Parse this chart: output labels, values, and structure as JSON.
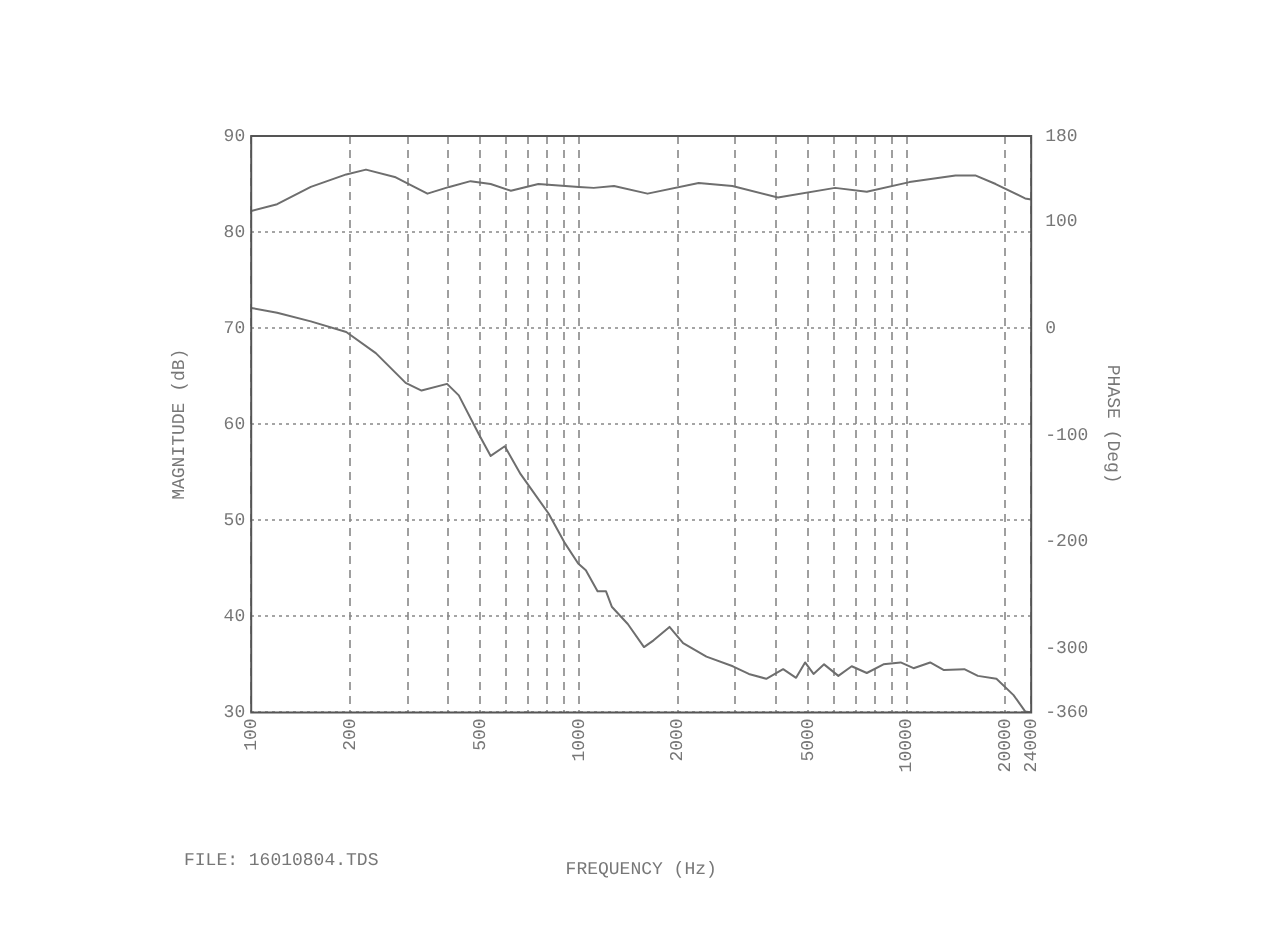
{
  "chart_data": {
    "type": "line",
    "xlabel": "FREQUENCY (Hz)",
    "ylabel": "MAGNITUDE (dB)",
    "y2label": "PHASE (Deg)",
    "annotations": [
      "FILE: 16010804.TDS"
    ],
    "log": "x",
    "grid": true,
    "legend": false,
    "marker": "none",
    "line_style": "solid",
    "xlim": [
      100,
      24000
    ],
    "xticks": [
      100,
      200,
      {
        "value": 300,
        "label": null
      },
      {
        "value": 400,
        "label": null
      },
      500,
      {
        "value": 600,
        "label": null
      },
      {
        "value": 700,
        "label": null
      },
      {
        "value": 800,
        "label": null
      },
      {
        "value": 900,
        "label": null
      },
      1000,
      2000,
      {
        "value": 3000,
        "label": null
      },
      {
        "value": 4000,
        "label": null
      },
      5000,
      {
        "value": 6000,
        "label": null
      },
      {
        "value": 7000,
        "label": null
      },
      {
        "value": 8000,
        "label": null
      },
      {
        "value": 9000,
        "label": null
      },
      10000,
      20000,
      24000
    ],
    "ylim": [
      30,
      90
    ],
    "yticks": [
      30,
      40,
      50,
      60,
      70,
      80,
      90
    ],
    "y2lim": [
      -360,
      180
    ],
    "y2ticks": [
      -360,
      -300,
      -200,
      -100,
      0,
      100,
      180
    ],
    "series": [
      {
        "color": "#6e6e6e",
        "x": [
          100,
          120,
          152,
          195,
          224,
          276,
          345,
          402,
          467,
          538,
          620,
          752,
          1000,
          1110,
          1280,
          1620,
          2320,
          2940,
          4050,
          6050,
          7560,
          10200,
          14100,
          16200,
          18700,
          23000,
          24000
        ],
        "values": [
          82.2,
          82.9,
          84.7,
          86.0,
          86.5,
          85.7,
          84.0,
          84.7,
          85.3,
          85.0,
          84.3,
          85.0,
          84.7,
          84.6,
          84.8,
          84.0,
          85.1,
          84.8,
          83.6,
          84.6,
          84.2,
          85.2,
          85.9,
          85.9,
          85.0,
          83.5,
          83.4
        ]
      },
      {
        "color": "#6e6e6e",
        "x": [
          100,
          120,
          152,
          195,
          240,
          296,
          331,
          396,
          430,
          496,
          538,
          594,
          664,
          808,
          903,
          995,
          1050,
          1140,
          1210,
          1260,
          1410,
          1580,
          1690,
          1890,
          2080,
          2450,
          2950,
          3300,
          3730,
          4200,
          4600,
          4900,
          5200,
          5600,
          6190,
          6800,
          7560,
          8500,
          9590,
          10500,
          11800,
          13000,
          15000,
          16500,
          18800,
          21200,
          23000,
          24000
        ],
        "values": [
          72.1,
          71.6,
          70.7,
          69.6,
          67.4,
          64.3,
          63.5,
          64.2,
          63.0,
          58.9,
          56.7,
          57.7,
          54.8,
          50.7,
          47.7,
          45.5,
          44.8,
          42.6,
          42.6,
          41.0,
          39.2,
          36.8,
          37.5,
          38.9,
          37.2,
          35.8,
          34.8,
          34.0,
          33.5,
          34.5,
          33.6,
          35.2,
          34.0,
          35.0,
          33.8,
          34.8,
          34.1,
          35.0,
          35.2,
          34.6,
          35.2,
          34.4,
          34.5,
          33.8,
          33.5,
          31.8,
          30.1,
          30.0
        ]
      }
    ]
  }
}
